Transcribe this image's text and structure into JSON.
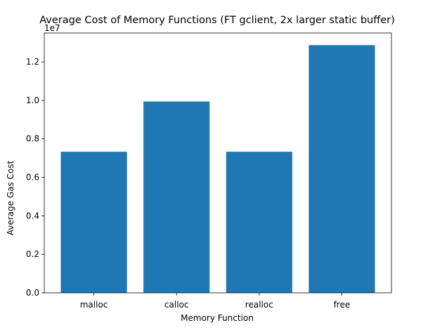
{
  "chart_data": {
    "type": "bar",
    "title": "Average Cost of Memory Functions (FT gclient, 2x larger static buffer)",
    "xlabel": "Memory Function",
    "ylabel": "Average Gas Cost",
    "categories": [
      "malloc",
      "calloc",
      "realloc",
      "free"
    ],
    "values": [
      7330000,
      9940000,
      7330000,
      12870000
    ],
    "ylim": [
      0,
      13500000
    ],
    "yticks": [
      0,
      2000000,
      4000000,
      6000000,
      8000000,
      10000000,
      12000000
    ],
    "ytick_labels": [
      "0.0",
      "0.2",
      "0.4",
      "0.6",
      "0.8",
      "1.0",
      "1.2"
    ],
    "y_offset_label": "1e7",
    "bar_color": "#1f77b4",
    "grid": false,
    "legend": "none"
  }
}
